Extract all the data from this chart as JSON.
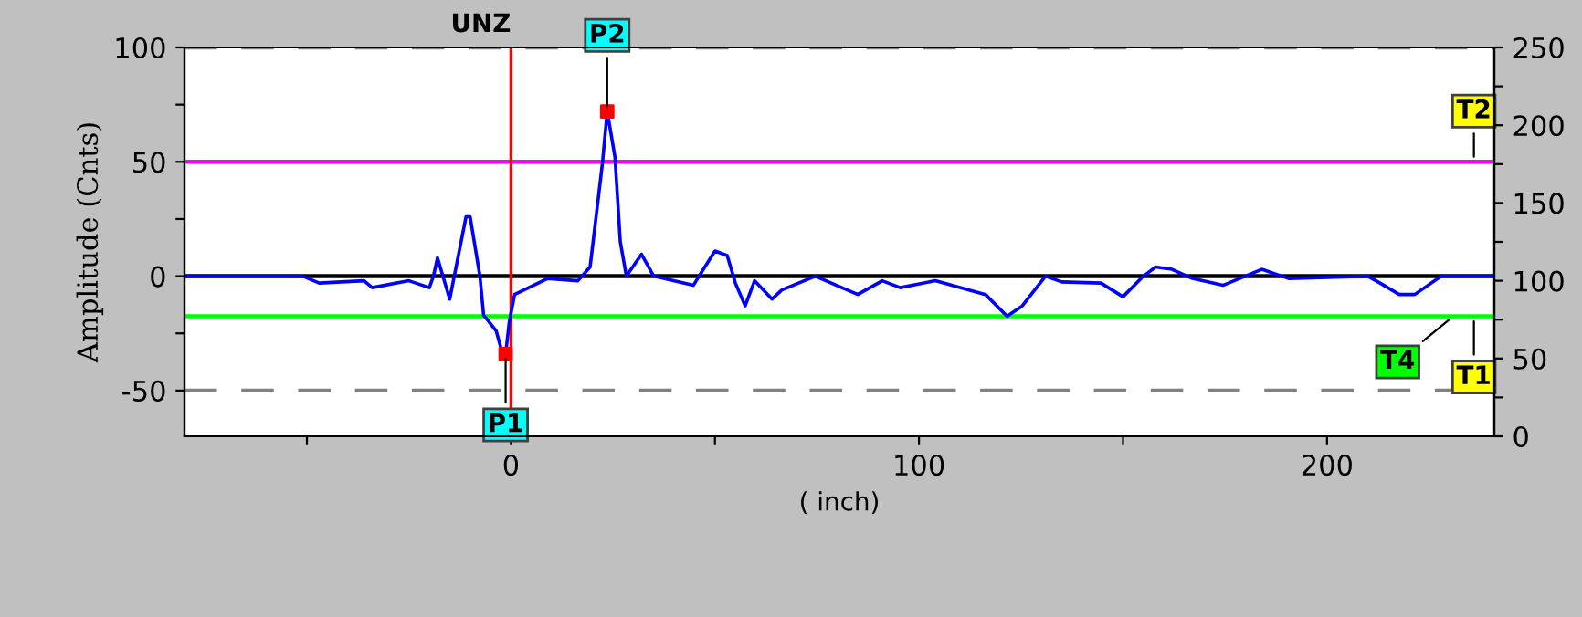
{
  "chart_data": {
    "type": "line",
    "xlabel": "( inch)",
    "ylabel": "Amplitude (Cnts)",
    "xlim": [
      -80,
      241
    ],
    "xticks": [
      {
        "value": -50,
        "label": null
      },
      0,
      {
        "value": 50,
        "label": null
      },
      100,
      {
        "value": 150,
        "label": null
      },
      200
    ],
    "ylim": [
      -70,
      100
    ],
    "yticks": [
      -50,
      {
        "value": -25,
        "label": null
      },
      0,
      {
        "value": 25,
        "label": null
      },
      50,
      {
        "value": 75,
        "label": null
      },
      100
    ],
    "y2lim": [
      0,
      250
    ],
    "y2ticks": [
      0,
      {
        "value": 25,
        "label": null
      },
      50,
      {
        "value": 75,
        "label": null
      },
      100,
      {
        "value": 125,
        "label": null
      },
      150,
      {
        "value": 175,
        "label": null
      },
      200,
      {
        "value": 225,
        "label": null
      },
      250
    ],
    "grid": false,
    "legend": false,
    "series": [
      {
        "color": "#0000ff",
        "x": [
          -80,
          -51,
          -47,
          -36,
          -34,
          -25,
          -20,
          -19,
          -18,
          -15,
          -11,
          -10,
          -7.6,
          -6.7,
          -3.6,
          -2.2,
          -1.3,
          -0.4,
          0.9,
          9,
          16.4,
          19.4,
          22.4,
          23.6,
          25.5,
          26.8,
          28.3,
          32,
          35,
          44.7,
          50,
          53,
          55,
          57.4,
          59.7,
          64,
          66.4,
          74.6,
          85,
          91,
          95.4,
          104,
          116.3,
          121.6,
          125.3,
          131,
          135,
          144.6,
          150,
          155,
          158,
          162,
          167,
          174.5,
          184,
          190.6,
          210,
          213,
          217.7,
          221.5,
          228,
          241
        ],
        "values": [
          0,
          0,
          -3,
          -2,
          -5,
          -2,
          -5,
          0,
          8,
          -10,
          26,
          26,
          0,
          -17,
          -24,
          -33,
          -34,
          -20,
          -8,
          -1,
          -2,
          4,
          49,
          72,
          52,
          15,
          0,
          9.6,
          0,
          -4,
          11,
          9,
          -3,
          -13,
          -2,
          -10,
          -6,
          0,
          -8,
          -2,
          -5,
          -2,
          -8,
          -17.5,
          -13,
          0,
          -2.5,
          -3,
          -9,
          0,
          4,
          3,
          -1,
          -4,
          3,
          -1,
          0,
          -3,
          -8,
          -8,
          0,
          0
        ]
      },
      {
        "type": "scatter",
        "color": "#ff0000",
        "marker": "square",
        "x": [
          -1.3,
          23.6
        ],
        "values": [
          -34,
          72
        ]
      }
    ],
    "ref_lines": [
      {
        "axis": "y",
        "value": 100,
        "color": "#808080",
        "line_style": "dashed"
      },
      {
        "axis": "y",
        "value": -50,
        "color": "#808080",
        "line_style": "dashed"
      },
      {
        "axis": "y",
        "value": 50,
        "color": "#ff00ff",
        "line_style": "solid"
      },
      {
        "axis": "y",
        "value": 0,
        "color": "#000000",
        "line_style": "solid"
      },
      {
        "axis": "y",
        "value": -17.5,
        "color": "#00ff00",
        "line_style": "solid"
      },
      {
        "axis": "x",
        "value": 0,
        "color": "#ff0000",
        "line_style": "solid",
        "label": "UNZ"
      }
    ],
    "annotations": [
      {
        "text": "P1",
        "x": -1.3,
        "y": -34
      },
      {
        "text": "P2",
        "x": 23.6,
        "y": 72
      },
      {
        "text": "T2",
        "x": 236,
        "y": 50
      },
      {
        "text": "T4",
        "x": 231,
        "y": -17.5
      },
      {
        "text": "T1",
        "x": 236,
        "y": -17.5
      }
    ]
  }
}
